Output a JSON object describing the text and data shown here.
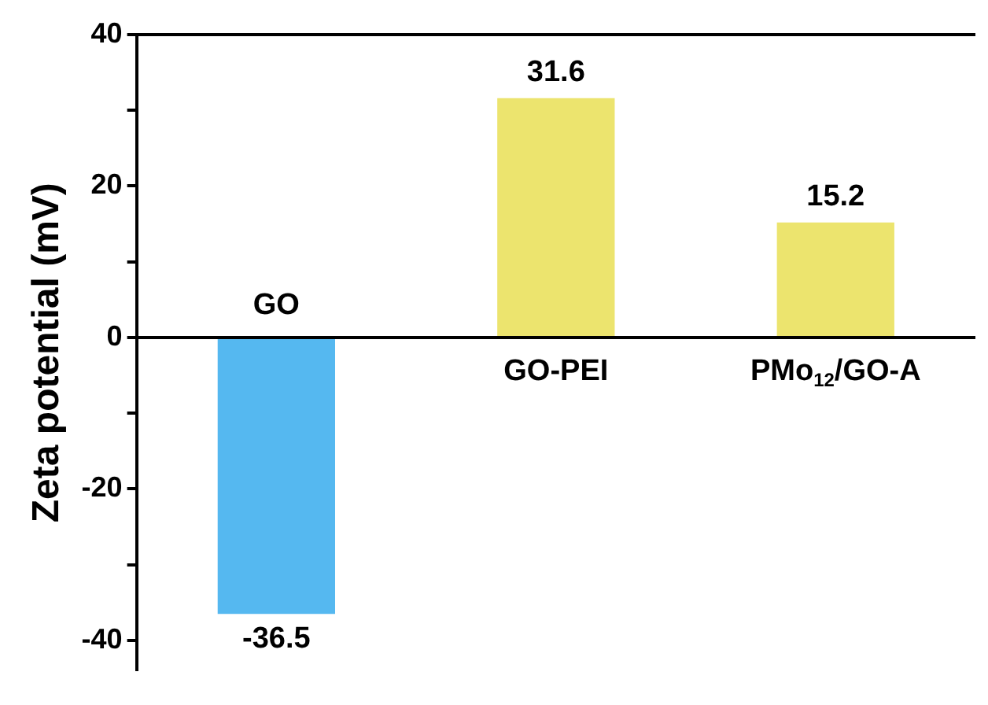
{
  "chart_data": {
    "type": "bar",
    "ylabel": "Zeta potential (mV)",
    "categories": [
      "GO",
      "GO-PEI",
      "PMo$_{12}$/GO-A"
    ],
    "values": [
      -36.5,
      31.6,
      15.2
    ],
    "colors": [
      "#55b8f0",
      "#ece46e",
      "#ece46e"
    ],
    "ylim": [
      -44,
      40
    ],
    "yticks": [
      {
        "value": -40,
        "label": "-40"
      },
      {
        "value": -30,
        "label": null
      },
      {
        "value": -20,
        "label": "-20"
      },
      {
        "value": -10,
        "label": null
      },
      0,
      {
        "value": 10,
        "label": null
      },
      20,
      {
        "value": 30,
        "label": null
      },
      40
    ],
    "data_labels": true,
    "grid": false,
    "legend": false
  }
}
